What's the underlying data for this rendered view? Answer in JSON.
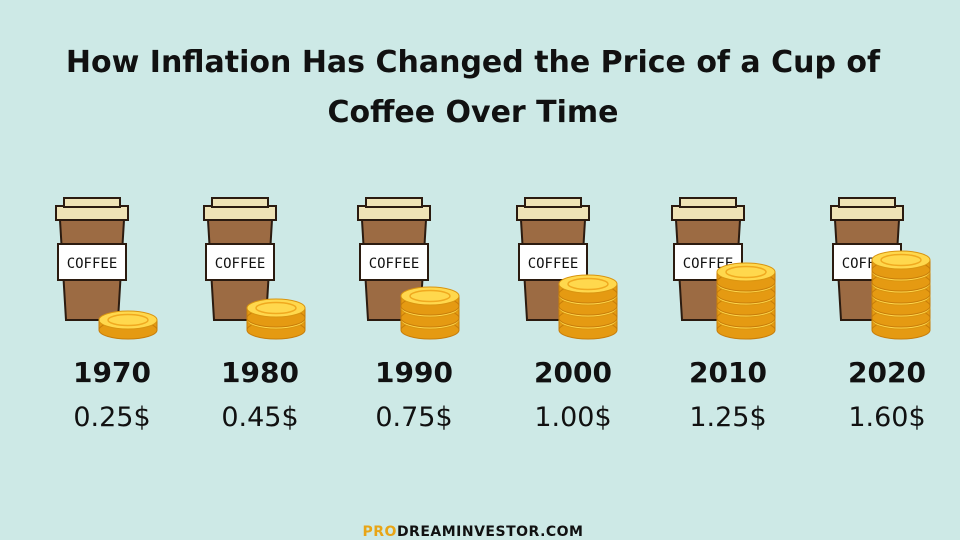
{
  "title": {
    "line1": "How Inflation Has Changed the Price of a Cup of",
    "line2": "Coffee Over Time"
  },
  "cup_label": "COFFEE",
  "items": [
    {
      "year": "1970",
      "price": "0.25$",
      "price_value": 0.25,
      "coins": 1
    },
    {
      "year": "1980",
      "price": "0.45$",
      "price_value": 0.45,
      "coins": 2
    },
    {
      "year": "1990",
      "price": "0.75$",
      "price_value": 0.75,
      "coins": 3
    },
    {
      "year": "2000",
      "price": "1.00$",
      "price_value": 1.0,
      "coins": 4
    },
    {
      "year": "2010",
      "price": "1.25$",
      "price_value": 1.25,
      "coins": 5
    },
    {
      "year": "2020",
      "price": "1.60$",
      "price_value": 1.6,
      "coins": 6
    }
  ],
  "footer": {
    "brand_prefix": "PRO",
    "brand_rest": "DREAMINVESTOR.COM"
  },
  "colors": {
    "background": "#cde9e6",
    "cup": "#9c6b43",
    "lid": "#efe3b6",
    "coin": "#f5b82e",
    "coin_top": "#ffd84d",
    "brand_accent": "#e8a516"
  }
}
